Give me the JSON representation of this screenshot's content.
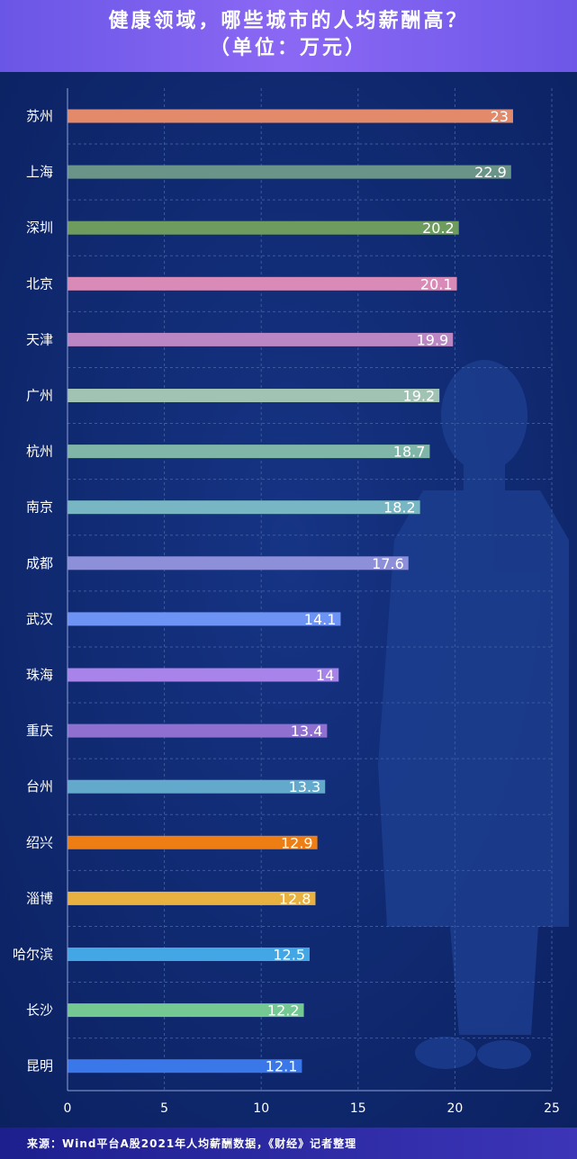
{
  "header": {
    "title": "健康领域，哪些城市的人均薪酬高？",
    "subtitle": "（单位：万元）"
  },
  "footer": {
    "source": "来源：Wind平台A股2021年人均薪酬数据，《财经》记者整理"
  },
  "colors": {
    "background": "#0d2567",
    "grid": "#3c5a9e",
    "label": "#ffffff"
  },
  "chart_data": {
    "type": "bar",
    "orientation": "horizontal",
    "title": "健康领域，哪些城市的人均薪酬高？",
    "subtitle": "（单位：万元）",
    "categories": [
      "苏州",
      "上海",
      "深圳",
      "北京",
      "天津",
      "广州",
      "杭州",
      "南京",
      "成都",
      "武汉",
      "珠海",
      "重庆",
      "台州",
      "绍兴",
      "淄博",
      "哈尔滨",
      "长沙",
      "昆明"
    ],
    "values": [
      23,
      22.9,
      20.2,
      20.1,
      19.9,
      19.2,
      18.7,
      18.2,
      17.6,
      14.1,
      14,
      13.4,
      13.3,
      12.9,
      12.8,
      12.5,
      12.2,
      12.1
    ],
    "value_labels": [
      "23",
      "22.9",
      "20.2",
      "20.1",
      "19.9",
      "19.2",
      "18.7",
      "18.2",
      "17.6",
      "14.1",
      "14",
      "13.4",
      "13.3",
      "12.9",
      "12.8",
      "12.5",
      "12.2",
      "12.1"
    ],
    "bar_colors": [
      "#e38a6a",
      "#6b9489",
      "#6e9c5e",
      "#d98ab7",
      "#bb86c4",
      "#a0c3b3",
      "#7fb6a8",
      "#77b6c2",
      "#8d8fd9",
      "#6d94f5",
      "#a783ea",
      "#8f70d1",
      "#62a9cc",
      "#ee7d14",
      "#e9b240",
      "#43a7e6",
      "#74c891",
      "#3a77e8"
    ],
    "x_ticks": [
      "0",
      "5",
      "10",
      "15",
      "20",
      "25"
    ],
    "xlim": [
      0,
      25
    ],
    "xlabel": "",
    "ylabel": "",
    "grid": true
  }
}
